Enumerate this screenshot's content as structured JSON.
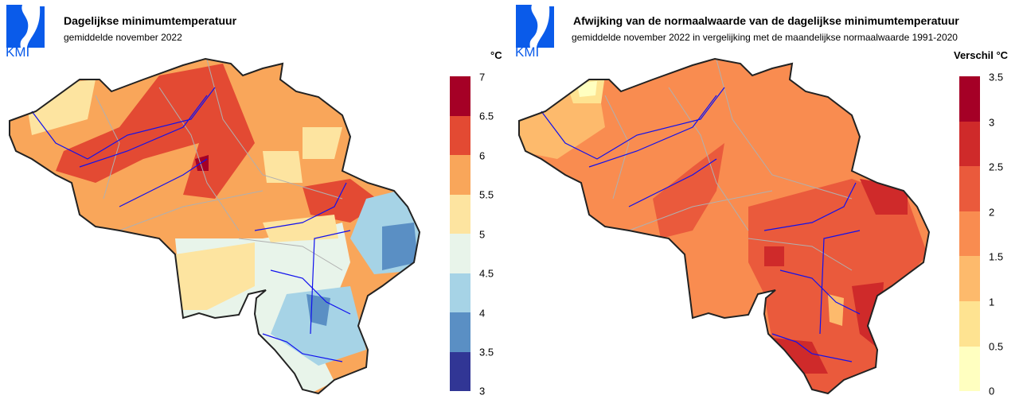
{
  "logo_text": "KMI",
  "left": {
    "title": "Dagelijkse minimumtemperatuur",
    "subtitle": "gemiddelde november 2022",
    "legend_title": "°C",
    "ticks": [
      "7",
      "6.5",
      "6",
      "5.5",
      "5",
      "4.5",
      "4",
      "3.5",
      "3"
    ],
    "colors": [
      "#a50026",
      "#e34a33",
      "#f9a65a",
      "#fde4a0",
      "#e8f4ea",
      "#a6d3e6",
      "#5a8fc4",
      "#313695"
    ]
  },
  "right": {
    "title": "Afwijking van de normaalwaarde van de dagelijkse minimumtemperatuur",
    "subtitle": "gemiddelde november 2022 in vergelijking met de maandelijkse normaalwaarde 1991-2020",
    "legend_title": "Verschil °C",
    "ticks": [
      "3.5",
      "3",
      "2.5",
      "2",
      "1.5",
      "1",
      "0.5",
      "0"
    ],
    "colors": [
      "#a50026",
      "#cf2a2a",
      "#ea5a3c",
      "#f98c50",
      "#fdba6c",
      "#fee391",
      "#ffffc0"
    ]
  }
}
